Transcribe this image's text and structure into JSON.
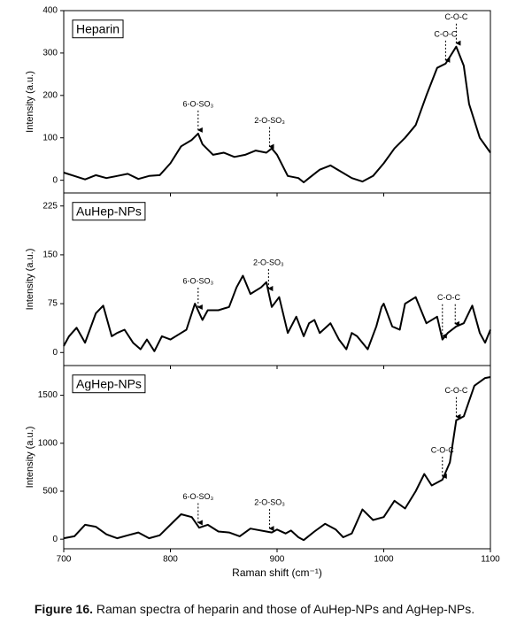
{
  "chart_data": [
    {
      "type": "line",
      "label": "Heparin",
      "ylabel": "Intensity (a.u.)",
      "xlim": [
        700,
        1100
      ],
      "xticks": [
        700,
        800,
        900,
        1000,
        1100
      ],
      "ylim": [
        -30,
        400
      ],
      "yticks": [
        0,
        100,
        200,
        300,
        400
      ],
      "color": "#000000",
      "x": [
        700,
        710,
        720,
        730,
        740,
        750,
        760,
        770,
        780,
        790,
        800,
        810,
        820,
        826,
        830,
        840,
        850,
        860,
        870,
        880,
        890,
        895,
        900,
        910,
        920,
        925,
        930,
        940,
        950,
        960,
        970,
        980,
        990,
        1000,
        1010,
        1020,
        1030,
        1040,
        1050,
        1058,
        1068,
        1075,
        1080,
        1090,
        1100
      ],
      "values": [
        18,
        10,
        2,
        12,
        5,
        10,
        15,
        3,
        10,
        12,
        40,
        80,
        95,
        110,
        85,
        60,
        65,
        55,
        60,
        70,
        65,
        75,
        60,
        10,
        5,
        -5,
        5,
        25,
        35,
        20,
        5,
        -3,
        10,
        40,
        75,
        100,
        130,
        200,
        265,
        275,
        315,
        270,
        180,
        100,
        65
      ],
      "annotations": [
        {
          "text": "6-O-SO₃",
          "x": [
            826
          ]
        },
        {
          "text": "2-O-SO₃",
          "x": [
            893
          ]
        },
        {
          "text": "C-O-C",
          "x": [
            1058
          ]
        },
        {
          "text": "C-O-C",
          "x": [
            1068
          ]
        }
      ]
    },
    {
      "type": "line",
      "label": "AuHep-NPs",
      "ylabel": "Intensity (a.u.)",
      "xlim": [
        700,
        1100
      ],
      "xticks": [
        700,
        800,
        900,
        1000,
        1100
      ],
      "ylim": [
        -20,
        245
      ],
      "yticks": [
        0,
        75,
        150,
        225
      ],
      "color": "#000000",
      "x": [
        700,
        705,
        712,
        720,
        730,
        737,
        745,
        750,
        757,
        765,
        772,
        778,
        785,
        792,
        800,
        810,
        815,
        823,
        830,
        835,
        845,
        855,
        862,
        868,
        875,
        885,
        890,
        895,
        902,
        910,
        918,
        925,
        930,
        935,
        940,
        950,
        958,
        965,
        970,
        975,
        985,
        993,
        998,
        1000,
        1008,
        1015,
        1020,
        1030,
        1040,
        1050,
        1055,
        1060,
        1068,
        1075,
        1083,
        1090,
        1095,
        1100
      ],
      "values": [
        10,
        25,
        38,
        15,
        60,
        72,
        25,
        30,
        35,
        15,
        5,
        20,
        2,
        25,
        20,
        30,
        35,
        75,
        50,
        65,
        65,
        70,
        100,
        118,
        90,
        100,
        108,
        70,
        85,
        30,
        55,
        25,
        45,
        50,
        30,
        45,
        20,
        5,
        30,
        25,
        5,
        40,
        70,
        75,
        40,
        35,
        75,
        85,
        45,
        55,
        20,
        30,
        40,
        45,
        72,
        30,
        15,
        35
      ],
      "annotations": [
        {
          "text": "6-O-SO₃",
          "x": [
            826
          ]
        },
        {
          "text": "2-O-SO₃",
          "x": [
            892
          ]
        },
        {
          "text": "C-O-C",
          "x": [
            1055,
            1067
          ]
        }
      ]
    },
    {
      "type": "line",
      "label": "AgHep-NPs",
      "ylabel": "Intensity (a.u.)",
      "xlabel": "Raman shift (cm⁻¹)",
      "xlim": [
        700,
        1100
      ],
      "xticks": [
        700,
        800,
        900,
        1000,
        1100
      ],
      "ylim": [
        -100,
        1810
      ],
      "yticks": [
        0,
        500,
        1000,
        1500
      ],
      "color": "#000000",
      "x": [
        700,
        710,
        720,
        730,
        740,
        750,
        760,
        770,
        780,
        790,
        800,
        810,
        820,
        827,
        835,
        845,
        855,
        865,
        875,
        880,
        890,
        895,
        900,
        908,
        913,
        920,
        925,
        935,
        945,
        955,
        962,
        970,
        980,
        990,
        1000,
        1010,
        1020,
        1030,
        1038,
        1045,
        1055,
        1062,
        1068,
        1075,
        1085,
        1095,
        1100
      ],
      "values": [
        10,
        30,
        150,
        130,
        50,
        10,
        40,
        70,
        10,
        40,
        150,
        260,
        230,
        120,
        150,
        80,
        70,
        30,
        110,
        100,
        80,
        70,
        100,
        60,
        90,
        20,
        -10,
        80,
        160,
        100,
        20,
        60,
        310,
        200,
        230,
        400,
        320,
        500,
        680,
        560,
        620,
        800,
        1240,
        1280,
        1600,
        1680,
        1690
      ],
      "annotations": [
        {
          "text": "6-O-SO₃",
          "x": [
            826
          ]
        },
        {
          "text": "2-O-SO₃",
          "x": [
            893
          ]
        },
        {
          "text": "C-O-C",
          "x": [
            1055
          ]
        },
        {
          "text": "C-O-C",
          "x": [
            1068
          ]
        }
      ]
    }
  ],
  "caption": {
    "label": "Figure 16.",
    "text": "Raman spectra of heparin and those of AuHep-NPs and AgHep-NPs."
  }
}
